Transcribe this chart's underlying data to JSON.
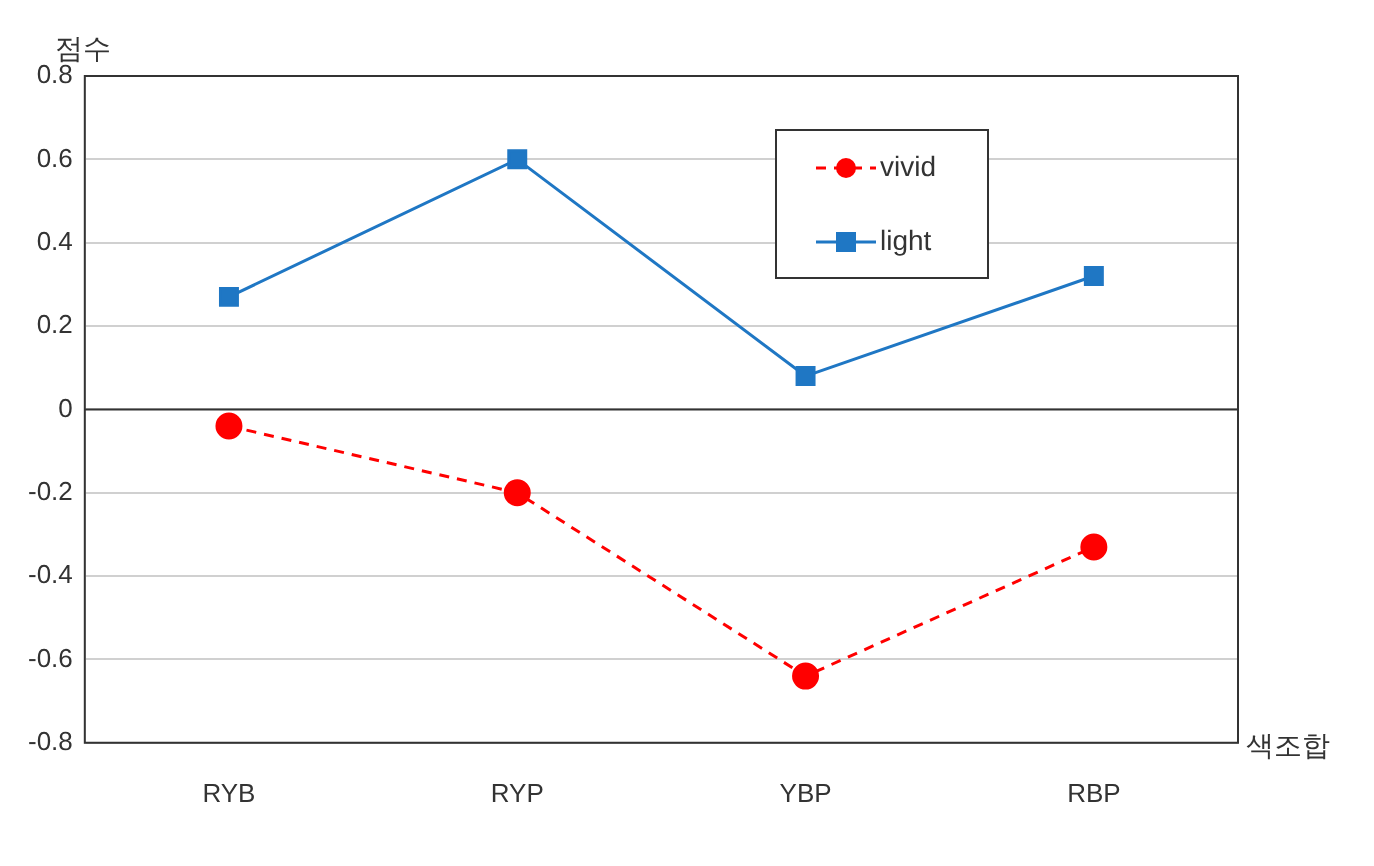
{
  "chart_data": {
    "type": "line",
    "xlabel": "색조합",
    "ylabel": "점수",
    "categories": [
      "RYB",
      "RYP",
      "YBP",
      "RBP"
    ],
    "series": [
      {
        "name": "vivid",
        "color": "#ff0000",
        "values": [
          -0.04,
          -0.2,
          -0.64,
          -0.33
        ],
        "marker": "circle",
        "line_style": "dashed"
      },
      {
        "name": "light",
        "color": "#1f77c4",
        "values": [
          0.27,
          0.6,
          0.08,
          0.32
        ],
        "marker": "square",
        "line_style": "solid"
      }
    ],
    "ylim": [
      -0.8,
      0.8
    ],
    "yticks": [
      -0.8,
      -0.6,
      -0.4,
      -0.2,
      0,
      0.2,
      0.4,
      0.6,
      0.8
    ],
    "grid": "y",
    "legend": "top right"
  }
}
